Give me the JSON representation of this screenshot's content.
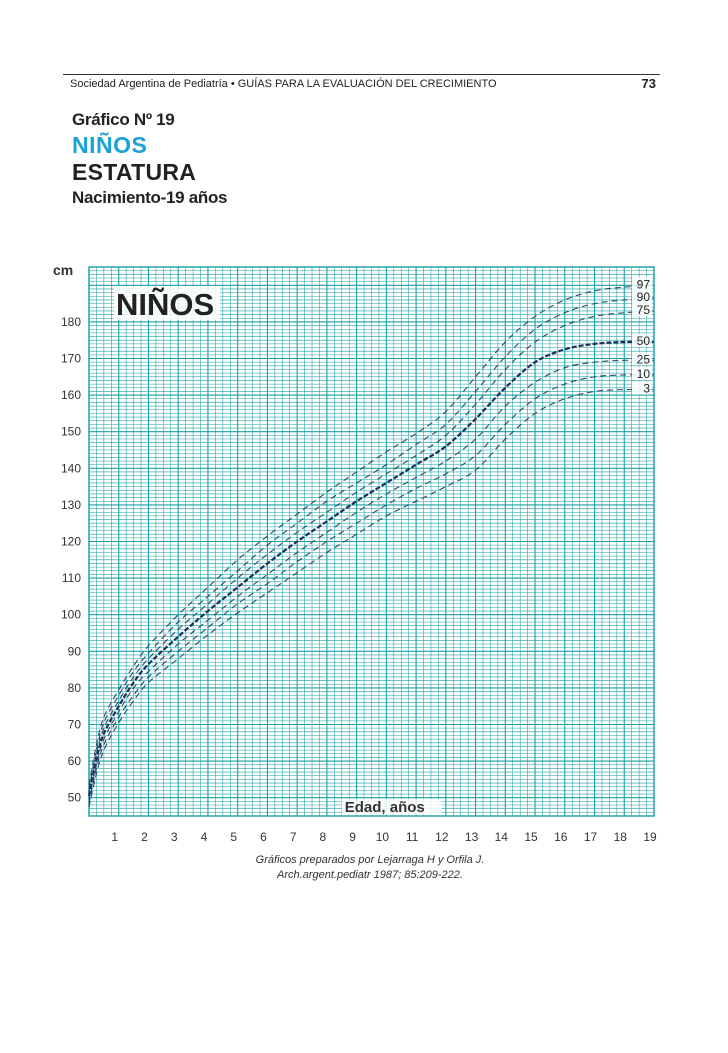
{
  "header": {
    "society": "Sociedad Argentina de Pediatría • GUÍAS PARA LA EVALUACIÓN DEL CRECIMIENTO",
    "page_number": "73"
  },
  "titles": {
    "chart_number": "Gráfico Nº 19",
    "group": "NIÑOS",
    "measure": "ESTATURA",
    "range": "Nacimiento-19 años"
  },
  "credit": {
    "line1": "Gráficos preparados por Lejarraga H y Orfila J.",
    "line2": "Arch.argent.pediatr 1987; 85:209-222."
  },
  "colors": {
    "grid": "#1aa0a8",
    "median": "#1a2f5a",
    "percentile": "#2a4a6a",
    "title_accent": "#1aa3d6"
  },
  "chart_data": {
    "type": "line",
    "title": "NIÑOS",
    "ylabel": "cm",
    "xlabel": "Edad, años",
    "xlim": [
      0,
      19
    ],
    "ylim": [
      45,
      195
    ],
    "grid": true,
    "x_ticks": [
      1,
      2,
      3,
      4,
      5,
      6,
      7,
      8,
      9,
      10,
      11,
      12,
      13,
      14,
      15,
      16,
      17,
      18,
      19
    ],
    "y_ticks": [
      50,
      60,
      70,
      80,
      90,
      100,
      110,
      120,
      130,
      140,
      150,
      160,
      170,
      180
    ],
    "x": [
      0,
      0.25,
      0.5,
      1,
      1.5,
      2,
      3,
      4,
      5,
      6,
      7,
      8,
      9,
      10,
      11,
      12,
      13,
      14,
      15,
      16,
      17,
      18,
      19
    ],
    "series": [
      {
        "name": "97",
        "values": [
          53.5,
          64.5,
          72,
          79.5,
          86,
          91.5,
          100,
          107.5,
          115,
          121.5,
          127.5,
          133.5,
          139,
          144.5,
          149.5,
          155.5,
          165,
          174.5,
          181.5,
          186,
          188.5,
          189.5,
          190
        ]
      },
      {
        "name": "90",
        "values": [
          52.5,
          63,
          70.5,
          78,
          84.5,
          89.5,
          98,
          105,
          112,
          119,
          125,
          131,
          136,
          141,
          146.5,
          152,
          161,
          170.5,
          178,
          182.5,
          185,
          186,
          186.5
        ]
      },
      {
        "name": "75",
        "values": [
          51.5,
          62,
          69,
          76.5,
          83,
          88,
          96,
          103,
          110,
          116.5,
          122.5,
          128,
          133.5,
          138.5,
          143.5,
          149,
          157.5,
          167,
          174.5,
          179,
          181.5,
          182.5,
          183
        ]
      },
      {
        "name": "50",
        "values": [
          50.5,
          60.5,
          67.5,
          75,
          81.5,
          86.5,
          94,
          101,
          107.5,
          114,
          120,
          125.5,
          131,
          136,
          141,
          146,
          153.5,
          162,
          169,
          172.5,
          174,
          174.5,
          174.5
        ]
      },
      {
        "name": "25",
        "values": [
          49.5,
          59,
          66,
          73.5,
          80,
          84.5,
          92,
          98.5,
          105,
          111,
          117,
          122.5,
          128,
          133,
          137.5,
          142,
          148,
          157,
          163.5,
          167.5,
          169,
          169.5,
          169.5
        ]
      },
      {
        "name": "10",
        "values": [
          48.5,
          58,
          64.5,
          72,
          78,
          83,
          90,
          96.5,
          103,
          108.5,
          114.5,
          120,
          125,
          130,
          134.5,
          138.5,
          143.5,
          152,
          159,
          163,
          165,
          165.5,
          165.5
        ]
      },
      {
        "name": "3",
        "values": [
          47.5,
          56.5,
          63,
          70.5,
          76.5,
          81.5,
          88,
          94.5,
          100.5,
          106,
          111.5,
          117,
          122,
          127,
          131,
          135,
          139.5,
          148,
          155,
          159,
          161,
          161.5,
          161.5
        ]
      }
    ]
  }
}
